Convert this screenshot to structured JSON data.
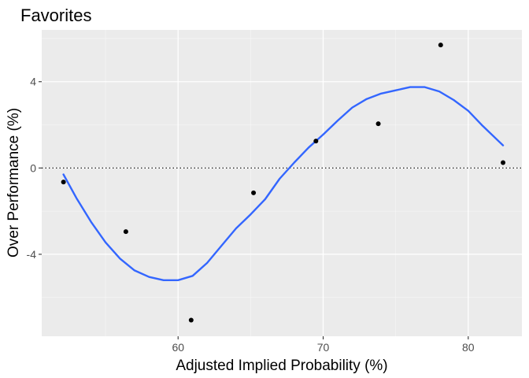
{
  "chart_data": {
    "type": "scatter",
    "title": "Favorites",
    "xlabel": "Adjusted Implied Probability (%)",
    "ylabel": "Over Performance (%)",
    "xlim": [
      50.6,
      83.7
    ],
    "ylim": [
      -7.8,
      6.4
    ],
    "x_ticks": [
      60,
      70,
      80
    ],
    "y_ticks": [
      -4,
      0,
      4
    ],
    "x_tick_labels": [
      "60",
      "70",
      "80"
    ],
    "y_tick_labels": [
      "-4",
      "0",
      "4"
    ],
    "grid": true,
    "reference_line": {
      "y": 0,
      "style": "dotted"
    },
    "series": [
      {
        "type": "points",
        "x": [
          52.1,
          56.4,
          60.9,
          65.2,
          69.5,
          73.8,
          78.1,
          82.4
        ],
        "y": [
          -0.65,
          -2.95,
          -7.05,
          -1.15,
          1.25,
          2.05,
          5.7,
          0.25
        ],
        "color": "#000000"
      },
      {
        "type": "smooth",
        "x": [
          52.1,
          53.0,
          54.0,
          55.0,
          56.0,
          57.0,
          58.0,
          59.0,
          60.0,
          61.0,
          62.0,
          63.0,
          64.0,
          65.0,
          66.0,
          67.0,
          68.0,
          69.0,
          70.0,
          71.0,
          72.0,
          73.0,
          74.0,
          75.0,
          76.0,
          77.0,
          78.0,
          79.0,
          80.0,
          81.0,
          82.4
        ],
        "y": [
          -0.3,
          -1.4,
          -2.5,
          -3.45,
          -4.2,
          -4.75,
          -5.05,
          -5.2,
          -5.2,
          -5.0,
          -4.4,
          -3.6,
          -2.8,
          -2.15,
          -1.45,
          -0.5,
          0.25,
          0.95,
          1.55,
          2.2,
          2.8,
          3.2,
          3.45,
          3.6,
          3.75,
          3.75,
          3.55,
          3.15,
          2.65,
          1.95,
          1.05
        ],
        "color": "#3366FF"
      }
    ]
  }
}
